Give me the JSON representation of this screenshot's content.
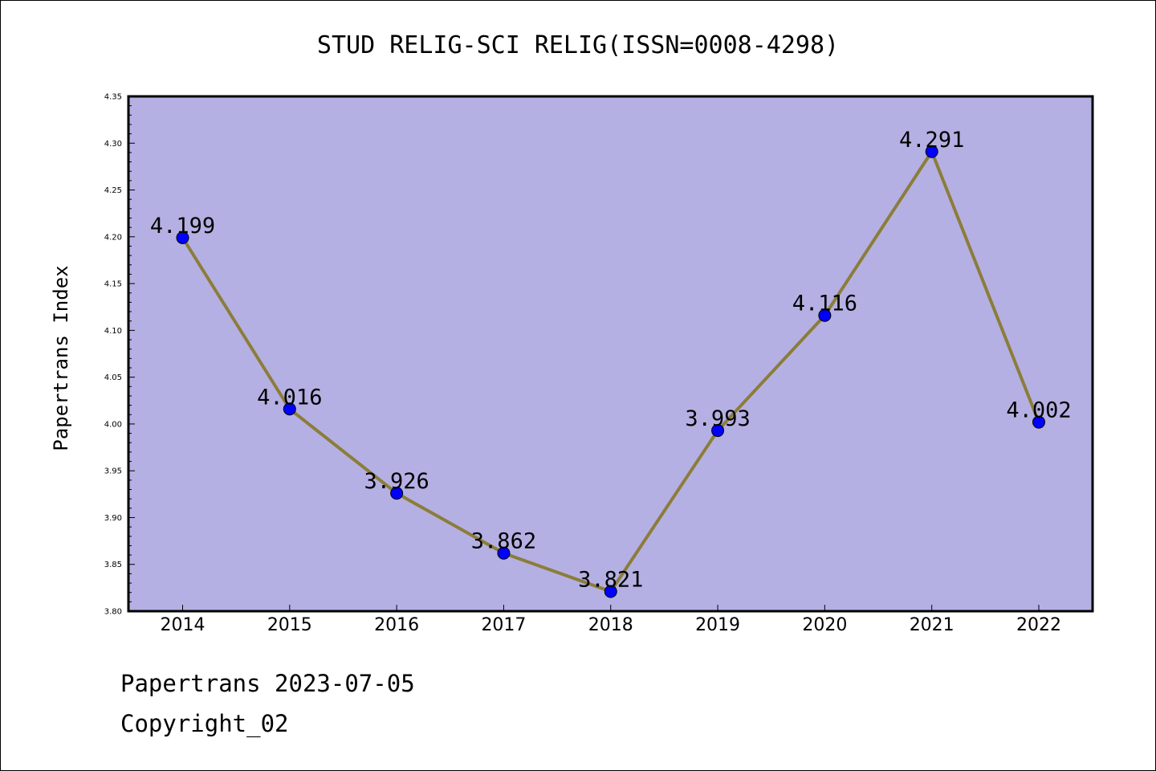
{
  "chart_data": {
    "type": "line",
    "title": "STUD RELIG-SCI RELIG(ISSN=0008-4298)",
    "xlabel": "",
    "ylabel": "Papertrans Index",
    "x": [
      "2014",
      "2015",
      "2016",
      "2017",
      "2018",
      "2019",
      "2020",
      "2021",
      "2022"
    ],
    "series": [
      {
        "values": [
          4.199,
          4.016,
          3.926,
          3.862,
          3.821,
          3.993,
          4.116,
          4.291,
          4.002
        ],
        "labels": [
          "4.199",
          "4.016",
          "3.926",
          "3.862",
          "3.821",
          "3.993",
          "4.116",
          "4.291",
          "4.002"
        ],
        "line_color": "#8b7d3a",
        "marker_color": "#0000ff"
      }
    ],
    "ylim": [
      3.8,
      4.35
    ],
    "yticks": [
      "3.80",
      "3.85",
      "3.90",
      "3.95",
      "4.00",
      "4.05",
      "4.10",
      "4.15",
      "4.20",
      "4.25",
      "4.30",
      "4.35"
    ],
    "plot_background": "#b5b0e3",
    "grid": false,
    "legend": "none"
  },
  "footer": {
    "line1": "Papertrans 2023-07-05",
    "line2": "Copyright_02"
  }
}
